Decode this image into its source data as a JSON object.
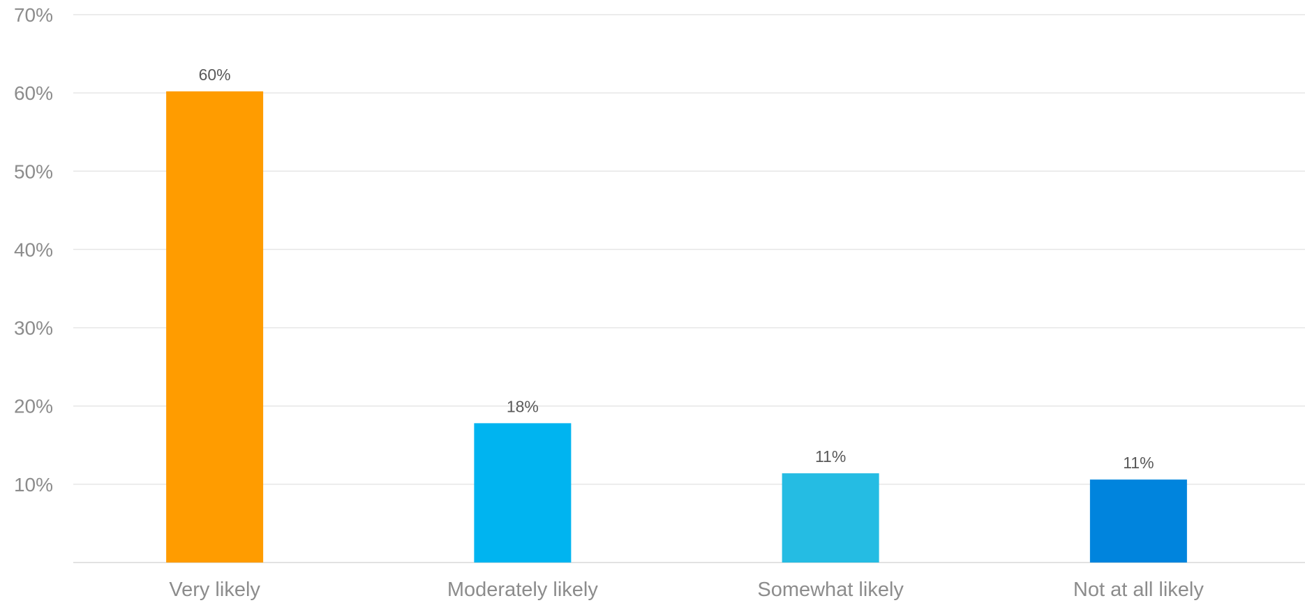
{
  "chart_data": {
    "type": "bar",
    "categories": [
      "Very likely",
      "Moderately likely",
      "Somewhat likely",
      "Not at all likely"
    ],
    "values": [
      60.2,
      17.8,
      11.4,
      10.6
    ],
    "data_labels": [
      "60%",
      "18%",
      "11%",
      "11%"
    ],
    "bar_colors": [
      "#ff9c00",
      "#00b4f0",
      "#25bce3",
      "#0084dd"
    ],
    "y_ticks": [
      {
        "value": 10,
        "label": "10%"
      },
      {
        "value": 20,
        "label": "20%"
      },
      {
        "value": 30,
        "label": "30%"
      },
      {
        "value": 40,
        "label": "40%"
      },
      {
        "value": 50,
        "label": "50%"
      },
      {
        "value": 60,
        "label": "60%"
      },
      {
        "value": 70,
        "label": "70%"
      }
    ],
    "ylim": [
      0,
      70
    ],
    "grid": true,
    "legend": "none"
  }
}
